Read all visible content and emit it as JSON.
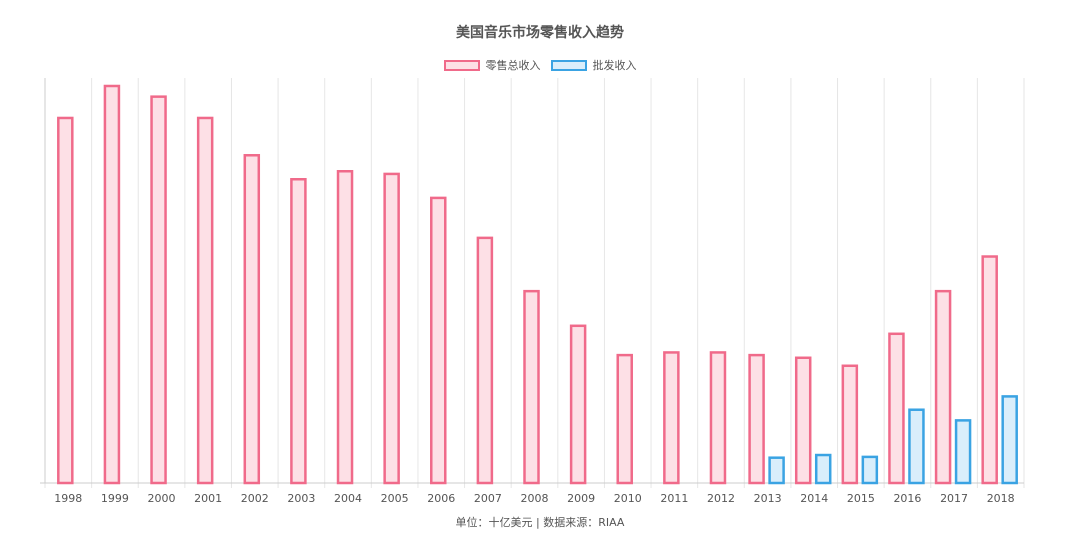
{
  "chart_data": {
    "type": "bar",
    "title": "美国音乐市场零售收入趋势",
    "footer": "单位：十亿美元 | 数据来源：RIAA",
    "categories": [
      "1998",
      "1999",
      "2000",
      "2001",
      "2002",
      "2003",
      "2004",
      "2005",
      "2006",
      "2007",
      "2008",
      "2009",
      "2010",
      "2011",
      "2012",
      "2013",
      "2014",
      "2015",
      "2016",
      "2017",
      "2018"
    ],
    "series": [
      {
        "name": "零售总收入",
        "color": "#f06a8a",
        "fill": "#fde0e6",
        "values": [
          13.7,
          14.9,
          14.5,
          13.7,
          12.3,
          11.4,
          11.7,
          11.6,
          10.7,
          9.2,
          7.2,
          5.9,
          4.8,
          4.9,
          4.9,
          4.8,
          4.7,
          4.4,
          5.6,
          7.2,
          8.5
        ]
      },
      {
        "name": "批发收入",
        "color": "#3aa3e3",
        "fill": "#d9eefb",
        "values": [
          null,
          null,
          null,
          null,
          null,
          null,
          null,
          null,
          null,
          null,
          null,
          null,
          null,
          null,
          null,
          0.95,
          1.05,
          0.98,
          2.75,
          2.35,
          3.25
        ]
      }
    ],
    "ylim": [
      0,
      15.2
    ],
    "grid": true,
    "legend_position": "top-center"
  }
}
